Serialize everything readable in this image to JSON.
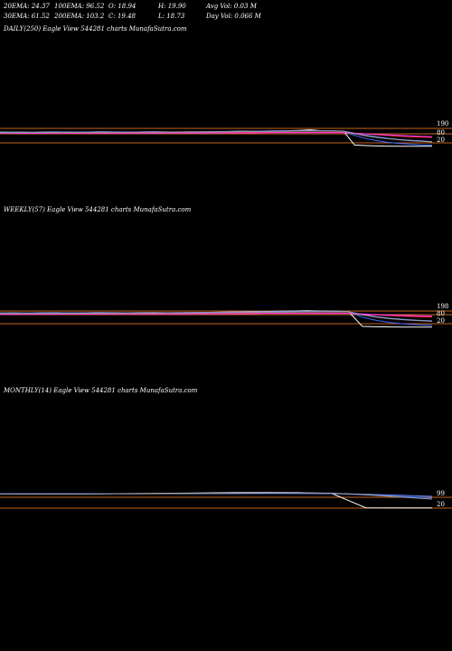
{
  "header": {
    "row1": [
      "20EMA: 24.37",
      "100EMA: 96.52",
      "O: 18.94",
      "H: 19.90",
      "Avg Vol: 0.03  M"
    ],
    "row2": [
      "30EMA: 61.52",
      "200EMA: 103.2",
      "C: 19.48",
      "L: 18.73",
      "Day Vol: 0.066  M"
    ]
  },
  "chart_data": [
    {
      "type": "line",
      "title": "DAILY(250) Eagle   View  544281 charts MunafaSutra.com",
      "y_tick_labels": [
        "190",
        "80",
        "20"
      ],
      "hlines": [
        {
          "value": "price-band-1",
          "color": "#c8641e"
        },
        {
          "value": "price-band-2",
          "color": "#c8641e"
        },
        {
          "value": "price-band-3",
          "color": "#c8641e"
        }
      ],
      "series": [
        {
          "color": "#ffffff",
          "values": [
            150,
            148,
            149,
            147,
            150,
            151,
            149,
            148,
            150,
            152,
            151,
            150,
            149,
            151,
            152,
            150,
            149,
            151,
            150,
            152,
            154,
            156,
            158,
            157,
            159,
            160,
            162,
            165,
            170,
            162,
            160,
            158,
            30,
            25,
            22,
            20,
            19,
            18,
            19,
            19
          ]
        },
        {
          "color": "#3b6cff",
          "values": [
            148,
            147,
            148,
            147,
            148,
            149,
            148,
            148,
            149,
            150,
            150,
            150,
            150,
            151,
            151,
            151,
            151,
            152,
            152,
            153,
            154,
            155,
            156,
            157,
            158,
            159,
            160,
            161,
            162,
            162,
            160,
            155,
            120,
            90,
            70,
            55,
            45,
            38,
            32,
            28
          ]
        },
        {
          "color": "#6f8fff",
          "values": [
            145,
            145,
            145,
            146,
            146,
            146,
            147,
            147,
            147,
            148,
            148,
            148,
            149,
            149,
            149,
            150,
            150,
            150,
            151,
            151,
            152,
            152,
            153,
            154,
            155,
            156,
            157,
            158,
            159,
            160,
            160,
            158,
            140,
            120,
            105,
            92,
            82,
            74,
            68,
            62
          ]
        },
        {
          "color": "#ff2d2d",
          "values": [
            140,
            140,
            140,
            140,
            141,
            141,
            141,
            141,
            142,
            142,
            142,
            142,
            143,
            143,
            143,
            143,
            144,
            144,
            144,
            144,
            145,
            145,
            145,
            146,
            146,
            146,
            147,
            147,
            147,
            148,
            148,
            147,
            140,
            132,
            125,
            118,
            112,
            107,
            103,
            100
          ]
        },
        {
          "color": "#ff3cff",
          "values": [
            138,
            138,
            138,
            138,
            138,
            139,
            139,
            139,
            139,
            139,
            140,
            140,
            140,
            140,
            140,
            141,
            141,
            141,
            141,
            141,
            142,
            142,
            142,
            142,
            143,
            143,
            143,
            143,
            144,
            144,
            144,
            143,
            138,
            133,
            128,
            123,
            118,
            114,
            110,
            107
          ]
        },
        {
          "color": "#9a9a9a",
          "values": [
            144,
            144,
            145,
            145,
            145,
            146,
            146,
            146,
            147,
            147,
            147,
            148,
            148,
            149,
            149,
            149,
            150,
            150,
            151,
            151,
            152,
            153,
            154,
            155,
            156,
            157,
            158,
            159,
            160,
            160,
            159,
            156,
            135,
            115,
            100,
            88,
            78,
            70,
            64,
            58
          ]
        }
      ]
    },
    {
      "type": "line",
      "title": "WEEKLY(57) Eagle   View  544281 charts MunafaSutra.com",
      "y_tick_labels": [
        "198",
        "80",
        "20"
      ],
      "hlines": [
        {
          "value": "price-band-1",
          "color": "#c8641e"
        },
        {
          "value": "price-band-2",
          "color": "#c8641e"
        },
        {
          "value": "price-band-3",
          "color": "#c8641e"
        }
      ],
      "series": [
        {
          "color": "#ffffff",
          "values": [
            148,
            149,
            147,
            150,
            151,
            149,
            150,
            152,
            151,
            150,
            151,
            152,
            150,
            151,
            152,
            154,
            156,
            158,
            160,
            162,
            164,
            166,
            168,
            166,
            164,
            162,
            25,
            22,
            20,
            19,
            19,
            19
          ]
        },
        {
          "color": "#3b6cff",
          "values": [
            147,
            147,
            148,
            148,
            149,
            149,
            149,
            150,
            150,
            150,
            151,
            151,
            151,
            152,
            152,
            153,
            154,
            156,
            157,
            158,
            160,
            161,
            162,
            162,
            161,
            160,
            110,
            80,
            60,
            48,
            40,
            35
          ]
        },
        {
          "color": "#6f8fff",
          "values": [
            144,
            144,
            145,
            145,
            146,
            146,
            147,
            147,
            148,
            148,
            149,
            149,
            150,
            150,
            151,
            152,
            153,
            154,
            155,
            156,
            157,
            158,
            159,
            160,
            160,
            159,
            135,
            115,
            100,
            90,
            82,
            76
          ]
        },
        {
          "color": "#ff2d2d",
          "values": [
            139,
            139,
            140,
            140,
            140,
            141,
            141,
            141,
            142,
            142,
            142,
            143,
            143,
            143,
            144,
            144,
            145,
            145,
            146,
            146,
            147,
            147,
            148,
            148,
            148,
            147,
            138,
            130,
            124,
            119,
            115,
            112
          ]
        },
        {
          "color": "#ff3cff",
          "values": [
            136,
            136,
            137,
            137,
            137,
            138,
            138,
            138,
            139,
            139,
            139,
            140,
            140,
            140,
            141,
            141,
            141,
            142,
            142,
            143,
            143,
            143,
            144,
            144,
            144,
            144,
            139,
            134,
            130,
            126,
            123,
            120
          ]
        },
        {
          "color": "#9a9a9a",
          "values": [
            143,
            143,
            144,
            144,
            145,
            145,
            146,
            146,
            147,
            147,
            148,
            148,
            149,
            149,
            150,
            151,
            152,
            153,
            154,
            155,
            156,
            157,
            158,
            159,
            159,
            158,
            130,
            110,
            96,
            86,
            78,
            72
          ]
        }
      ]
    },
    {
      "type": "line",
      "title": "MONTHLY(14) Eagle   View  544281 charts MunafaSutra.com",
      "y_tick_labels": [
        "99",
        "20"
      ],
      "hlines": [
        {
          "value": "price-band-1",
          "color": "#c8641e"
        },
        {
          "value": "price-band-2",
          "color": "#c8641e"
        }
      ],
      "series": [
        {
          "color": "#ffffff",
          "values": [
            150,
            148,
            147,
            149,
            151,
            153,
            156,
            160,
            162,
            160,
            150,
            20,
            19,
            19
          ]
        },
        {
          "color": "#3b6cff",
          "values": [
            149,
            149,
            148,
            148,
            149,
            150,
            151,
            152,
            153,
            153,
            151,
            140,
            125,
            110
          ]
        },
        {
          "color": "#6f8fff",
          "values": [
            150,
            150,
            150,
            150,
            150,
            150,
            151,
            151,
            152,
            152,
            151,
            145,
            135,
            125
          ]
        },
        {
          "color": "#9a9a9a",
          "values": [
            147,
            147,
            147,
            148,
            149,
            151,
            153,
            156,
            158,
            158,
            155,
            140,
            120,
            100
          ]
        }
      ]
    }
  ]
}
